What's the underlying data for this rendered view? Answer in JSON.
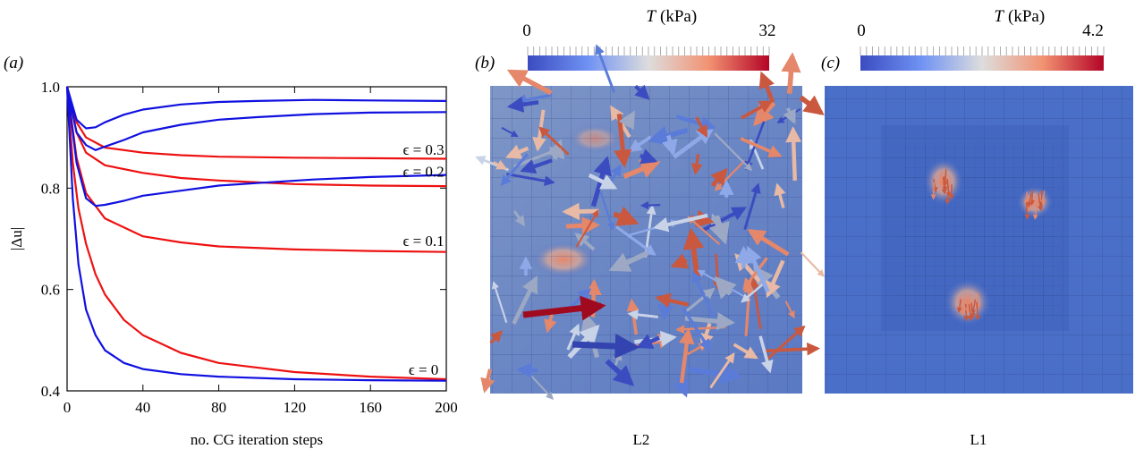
{
  "panels": {
    "a": {
      "label": "(a)"
    },
    "b": {
      "label": "(b)",
      "caption": "L2",
      "colorbar": {
        "symbol": "T",
        "unit": "(kPa)",
        "min": "0",
        "max": "32"
      }
    },
    "c": {
      "label": "(c)",
      "caption": "L1",
      "colorbar": {
        "symbol": "T",
        "unit": "(kPa)",
        "min": "0",
        "max": "4.2"
      }
    }
  },
  "colors": {
    "blue_series": "#1010e0",
    "red_series": "#ee1111",
    "cmap_low": "#3b4cc0",
    "cmap_mid": "#dddddd",
    "cmap_high": "#b40426",
    "field_bg": "#4a6fc8"
  },
  "chart_data": {
    "type": "line",
    "xlabel": "no. CG iteration steps",
    "ylabel": "|Δu|",
    "xlim": [
      0,
      200
    ],
    "ylim": [
      0.4,
      1.0
    ],
    "xticks": [
      "0",
      "40",
      "80",
      "120",
      "160",
      "200"
    ],
    "yticks": [
      "0.4",
      "0.6",
      "0.8",
      "1.0"
    ],
    "grid": false,
    "annotations": [
      {
        "text": "ϵ = 0.3",
        "x": 188,
        "y": 0.866
      },
      {
        "text": "ϵ = 0.2",
        "x": 188,
        "y": 0.823
      },
      {
        "text": "ϵ = 0.1",
        "x": 188,
        "y": 0.686
      },
      {
        "text": "ϵ = 0",
        "x": 188,
        "y": 0.432
      }
    ],
    "series": [
      {
        "color": "red",
        "x": [
          0,
          5,
          10,
          20,
          40,
          60,
          80,
          120,
          160,
          200
        ],
        "y": [
          1.0,
          0.93,
          0.9,
          0.88,
          0.87,
          0.865,
          0.862,
          0.86,
          0.859,
          0.858
        ]
      },
      {
        "color": "red",
        "x": [
          0,
          5,
          10,
          20,
          40,
          60,
          80,
          120,
          160,
          200
        ],
        "y": [
          1.0,
          0.91,
          0.87,
          0.845,
          0.83,
          0.82,
          0.815,
          0.808,
          0.805,
          0.804
        ]
      },
      {
        "color": "red",
        "x": [
          0,
          5,
          10,
          20,
          40,
          60,
          80,
          120,
          160,
          200
        ],
        "y": [
          1.0,
          0.86,
          0.79,
          0.74,
          0.705,
          0.693,
          0.685,
          0.679,
          0.676,
          0.674
        ]
      },
      {
        "color": "red",
        "x": [
          0,
          3,
          6,
          10,
          15,
          20,
          30,
          40,
          60,
          80,
          120,
          160,
          200
        ],
        "y": [
          1.0,
          0.85,
          0.76,
          0.69,
          0.63,
          0.59,
          0.54,
          0.51,
          0.475,
          0.455,
          0.437,
          0.428,
          0.423
        ]
      },
      {
        "color": "blue",
        "x": [
          0,
          5,
          10,
          15,
          20,
          30,
          40,
          60,
          80,
          100,
          130,
          160,
          200
        ],
        "y": [
          1.0,
          0.935,
          0.918,
          0.92,
          0.93,
          0.945,
          0.955,
          0.965,
          0.97,
          0.972,
          0.974,
          0.973,
          0.972
        ]
      },
      {
        "color": "blue",
        "x": [
          0,
          5,
          10,
          15,
          20,
          30,
          40,
          60,
          80,
          100,
          130,
          160,
          200
        ],
        "y": [
          1.0,
          0.91,
          0.885,
          0.875,
          0.882,
          0.895,
          0.91,
          0.925,
          0.935,
          0.94,
          0.946,
          0.949,
          0.95
        ]
      },
      {
        "color": "blue",
        "x": [
          0,
          5,
          10,
          15,
          20,
          30,
          40,
          60,
          80,
          100,
          130,
          160,
          200
        ],
        "y": [
          1.0,
          0.85,
          0.78,
          0.765,
          0.767,
          0.775,
          0.785,
          0.795,
          0.805,
          0.81,
          0.817,
          0.822,
          0.826
        ]
      },
      {
        "color": "blue",
        "x": [
          0,
          3,
          6,
          10,
          15,
          20,
          30,
          40,
          60,
          80,
          120,
          160,
          200
        ],
        "y": [
          1.0,
          0.78,
          0.65,
          0.56,
          0.51,
          0.48,
          0.455,
          0.443,
          0.433,
          0.428,
          0.423,
          0.421,
          0.42
        ]
      }
    ]
  }
}
